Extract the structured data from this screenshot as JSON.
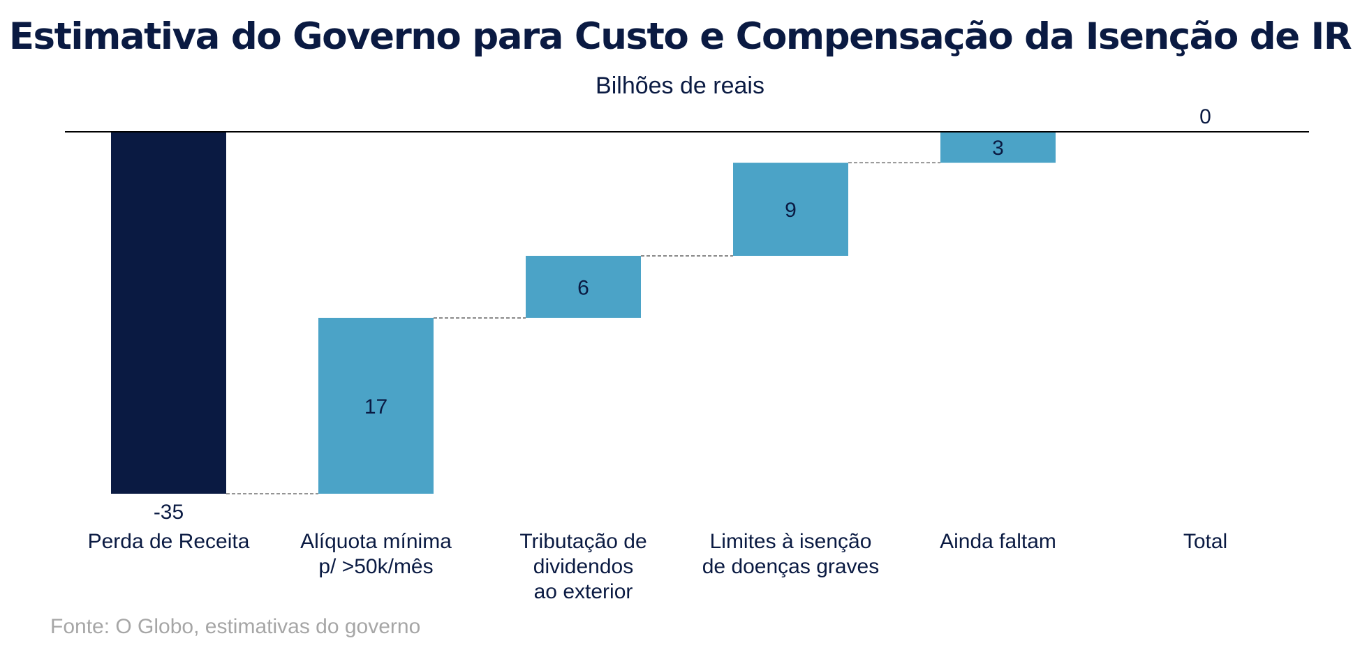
{
  "chart_data": {
    "type": "waterfall",
    "title": "Estimativa do Governo para Custo e Compensação da Isenção de IR",
    "subtitle": "Bilhões de reais",
    "source": "Fonte: O Globo, estimativas do governo",
    "categories": [
      [
        "Perda de Receita"
      ],
      [
        "Alíquota mínima",
        "p/ >50k/mês"
      ],
      [
        "Tributação de",
        "dividendos",
        "ao exterior"
      ],
      [
        "Limites à isenção",
        "de doenças graves"
      ],
      [
        "Ainda faltam"
      ],
      [
        "Total"
      ]
    ],
    "values": [
      -35,
      17,
      6,
      9,
      3,
      0
    ],
    "labels": [
      "-35",
      "17",
      "6",
      "9",
      "3",
      "0"
    ],
    "kinds": [
      "total",
      "increase",
      "increase",
      "increase",
      "increase",
      "total"
    ],
    "ylim": [
      -35,
      0
    ],
    "colors": {
      "loss": "#0a1a42",
      "gain": "#4ba3c7",
      "text": "#0a1a42",
      "source": "#a6a6a6"
    },
    "grid": false,
    "legend": "none"
  }
}
